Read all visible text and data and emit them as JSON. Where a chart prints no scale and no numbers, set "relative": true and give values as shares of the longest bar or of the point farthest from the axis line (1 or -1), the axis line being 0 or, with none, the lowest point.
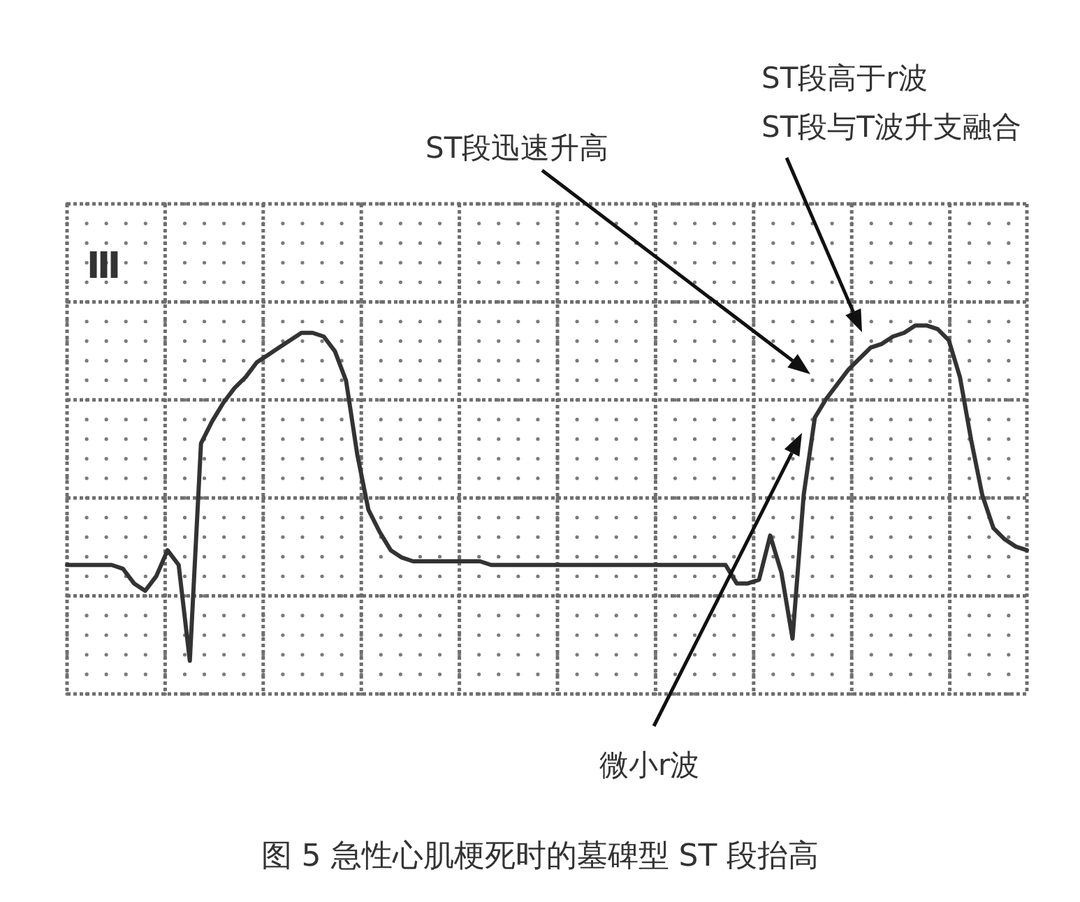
{
  "chart_data": {
    "type": "line",
    "relative": true,
    "title": "图 5 急性心肌梗死时的墓碑型 ST 段抬高",
    "annotations": [
      "Ⅲ",
      "ST段迅速升高",
      "ST段高于r波",
      "ST段与T波升支融合",
      "微小r波"
    ],
    "categories": [
      null,
      null,
      null,
      null,
      null,
      null,
      null,
      null,
      null,
      null,
      null,
      null,
      null,
      null,
      null,
      null,
      null,
      null,
      null,
      null,
      null,
      null,
      null,
      null,
      null,
      null,
      null,
      null,
      null,
      null,
      null,
      null,
      null,
      null,
      null,
      null,
      null,
      null,
      null,
      null,
      null,
      null,
      null,
      null,
      null,
      null,
      null,
      null,
      null,
      null,
      null,
      null,
      null,
      null,
      null,
      null,
      null,
      null,
      null,
      null,
      null,
      null,
      null,
      null,
      null,
      null,
      null,
      null,
      null,
      null,
      null,
      null,
      null,
      null,
      null,
      null,
      null,
      null,
      null,
      null,
      null,
      null,
      null,
      null,
      null,
      null,
      null
    ],
    "series": [
      {
        "color": "#333333",
        "values": [
          0.35,
          0.35,
          0.35,
          0.35,
          0.35,
          0.34,
          0.3,
          0.28,
          0.32,
          0.39,
          0.35,
          0.09,
          0.68,
          0.74,
          0.79,
          0.83,
          0.86,
          0.9,
          0.92,
          0.94,
          0.96,
          0.98,
          0.98,
          0.97,
          0.93,
          0.85,
          0.65,
          0.5,
          0.44,
          0.39,
          0.37,
          0.36,
          0.36,
          0.36,
          0.36,
          0.36,
          0.36,
          0.36,
          0.35,
          0.35,
          0.35,
          0.35,
          0.35,
          0.35,
          0.35,
          0.35,
          0.35,
          0.35,
          0.35,
          0.35,
          0.35,
          0.35,
          0.35,
          0.35,
          0.35,
          0.35,
          0.35,
          0.35,
          0.35,
          0.35,
          0.3,
          0.3,
          0.31,
          0.43,
          0.33,
          0.15,
          0.54,
          0.75,
          0.8,
          0.84,
          0.88,
          0.91,
          0.94,
          0.95,
          0.97,
          0.98,
          1.0,
          1.0,
          0.99,
          0.96,
          0.86,
          0.69,
          0.54,
          0.45,
          0.42,
          0.4,
          0.39
        ]
      }
    ],
    "grid": true,
    "legend": false,
    "marker": "none",
    "line_style": "solid"
  }
}
